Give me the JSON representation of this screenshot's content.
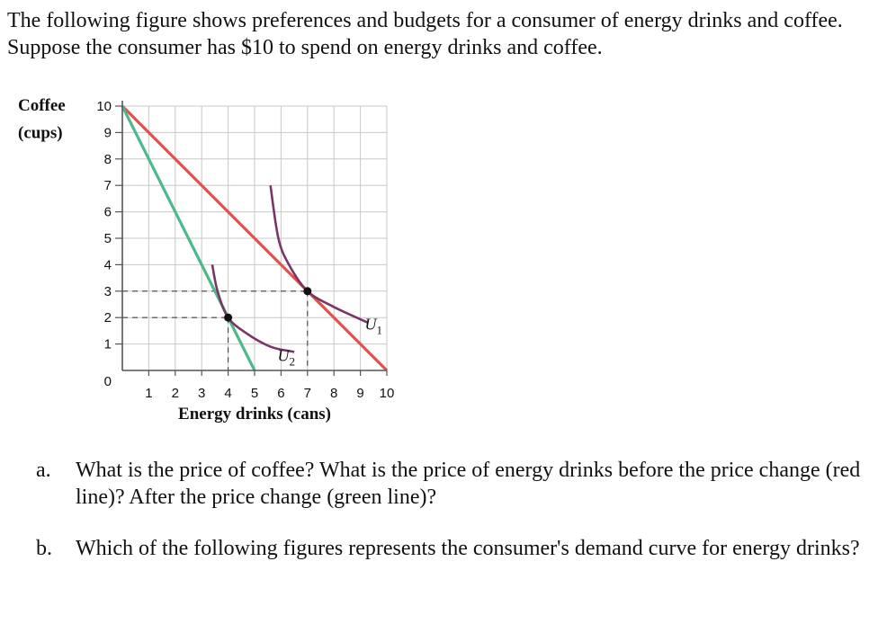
{
  "intro": "The following figure shows preferences and budgets for a consumer of energy drinks and coffee. Suppose the consumer has $10 to spend on energy drinks and coffee.",
  "questions": [
    {
      "letter": "a.",
      "text": "What is the price of coffee? What is the price of energy drinks before the price change (red line)? After the price change (green line)?"
    },
    {
      "letter": "b.",
      "text": "Which of the following figures represents the consumer's demand curve for energy drinks?"
    }
  ],
  "chart_data": {
    "type": "line",
    "xlabel": "Energy drinks (cans)",
    "ylabel": [
      "Coffee",
      "(cups)"
    ],
    "xlim": [
      0,
      10
    ],
    "ylim": [
      0,
      10
    ],
    "xticks": [
      1,
      2,
      3,
      4,
      5,
      6,
      7,
      8,
      9,
      10
    ],
    "yticks": [
      1,
      2,
      3,
      4,
      5,
      6,
      7,
      8,
      9,
      10
    ],
    "origin_label": "0",
    "grid": true,
    "colors": {
      "red_line": "#e0524a",
      "green_line": "#4db88a",
      "indifference": "#7a3566",
      "grid": "#c8c8c8",
      "axis": "#555555"
    },
    "series": [
      {
        "key": "red",
        "points": [
          [
            0,
            10
          ],
          [
            10,
            0
          ]
        ]
      },
      {
        "key": "green",
        "points": [
          [
            0,
            10
          ],
          [
            5,
            0
          ]
        ]
      }
    ],
    "indifference_curves": [
      {
        "label": "U",
        "sub": "1",
        "points": [
          [
            5.6,
            7
          ],
          [
            5.9,
            5
          ],
          [
            6.3,
            4
          ],
          [
            7,
            3
          ],
          [
            8,
            2.4
          ],
          [
            9.3,
            1.8
          ]
        ],
        "label_at": [
          9.5,
          1.55
        ]
      },
      {
        "label": "U",
        "sub": "2",
        "points": [
          [
            3.4,
            4
          ],
          [
            3.6,
            3
          ],
          [
            4,
            2
          ],
          [
            4.7,
            1.4
          ],
          [
            5.6,
            0.9
          ],
          [
            6.5,
            0.7
          ]
        ],
        "label_at": [
          6.2,
          0.35
        ]
      }
    ],
    "optimal_points": [
      [
        7,
        3
      ],
      [
        4,
        2
      ]
    ],
    "guides": [
      {
        "point": [
          7,
          3
        ],
        "style": "dashed"
      },
      {
        "point": [
          4,
          2
        ],
        "style": "dashed"
      }
    ]
  }
}
